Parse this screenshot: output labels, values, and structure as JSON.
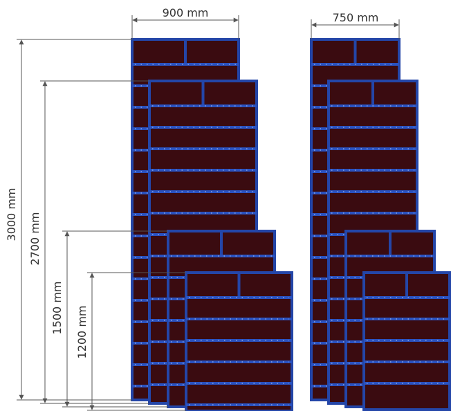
{
  "width_labels": [
    "900 mm",
    "750 mm"
  ],
  "height_labels": [
    "3000 mm",
    "2700 mm",
    "1500 mm",
    "1200 mm"
  ]
}
